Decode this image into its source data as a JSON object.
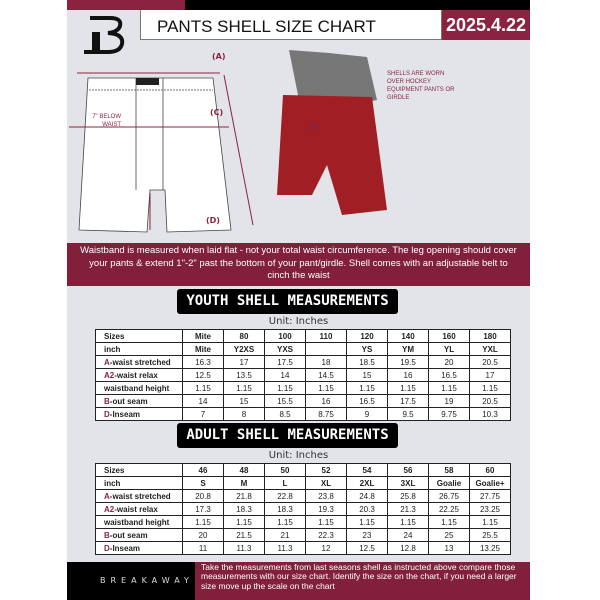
{
  "header": {
    "title": "PANTS SHELL SIZE CHART",
    "date": "2025.4.22"
  },
  "colors": {
    "brand": "#8b2340",
    "dark": "#000000"
  },
  "diagram": {
    "label_a": "(A)",
    "label_b": "(B)",
    "label_c": "(C)",
    "label_d": "(D)",
    "below_waist": "7\" BELOW WAIST",
    "note": "SHELLS ARE WORN OVER HOCKEY EQUIPMENT PANTS OR GIRDLE"
  },
  "info": "Waistband is measured when laid flat - not your total waist circumference. The leg opening should cover your pants & extend 1\"-2\" past the bottom of your pant/girdle. Shell comes with an adjustable belt to cinch the waist",
  "youth": {
    "title": "YOUTH SHELL MEASUREMENTS",
    "unit": "Unit: Inches",
    "rows": [
      {
        "k": "",
        "label": "Sizes",
        "v": [
          "Mite",
          "80",
          "100",
          "110",
          "120",
          "140",
          "160",
          "180"
        ]
      },
      {
        "k": "",
        "label": "inch",
        "v": [
          "Mite",
          "Y2XS",
          "YXS",
          "",
          "YS",
          "YM",
          "YL",
          "YXL"
        ]
      },
      {
        "k": "A",
        "label": "-waist stretched",
        "v": [
          "16.3",
          "17",
          "17.5",
          "18",
          "18.5",
          "19.5",
          "20",
          "20.5"
        ]
      },
      {
        "k": "A2",
        "label": "-waist relax",
        "v": [
          "12.5",
          "13.5",
          "14",
          "14.5",
          "15",
          "16",
          "16.5",
          "17"
        ]
      },
      {
        "k": "",
        "label": "waistband height",
        "v": [
          "1.15",
          "1.15",
          "1.15",
          "1.15",
          "1.15",
          "1.15",
          "1.15",
          "1.15"
        ]
      },
      {
        "k": "B",
        "label": "-out seam",
        "v": [
          "14",
          "15",
          "15.5",
          "16",
          "16.5",
          "17.5",
          "19",
          "20.5"
        ]
      },
      {
        "k": "D",
        "label": "-Inseam",
        "v": [
          "7",
          "8",
          "8.5",
          "8.75",
          "9",
          "9.5",
          "9.75",
          "10.3"
        ]
      }
    ]
  },
  "adult": {
    "title": "ADULT SHELL MEASUREMENTS",
    "unit": "Unit: Inches",
    "rows": [
      {
        "k": "",
        "label": "Sizes",
        "v": [
          "46",
          "48",
          "50",
          "52",
          "54",
          "56",
          "58",
          "60"
        ]
      },
      {
        "k": "",
        "label": "inch",
        "v": [
          "S",
          "M",
          "L",
          "XL",
          "2XL",
          "3XL",
          "Goalie",
          "Goalie+"
        ]
      },
      {
        "k": "A",
        "label": "-waist stretched",
        "v": [
          "20.8",
          "21.8",
          "22.8",
          "23.8",
          "24.8",
          "25.8",
          "26.75",
          "27.75"
        ]
      },
      {
        "k": "A2",
        "label": "-waist relax",
        "v": [
          "17.3",
          "18.3",
          "18.3",
          "19.3",
          "20.3",
          "21.3",
          "22.25",
          "23.25"
        ]
      },
      {
        "k": "",
        "label": "waistband height",
        "v": [
          "1.15",
          "1.15",
          "1.15",
          "1.15",
          "1.15",
          "1.15",
          "1.15",
          "1.15"
        ]
      },
      {
        "k": "B",
        "label": "-out seam",
        "v": [
          "20",
          "21.5",
          "21",
          "22.3",
          "23",
          "24",
          "25",
          "25.5"
        ]
      },
      {
        "k": "D",
        "label": "-Inseam",
        "v": [
          "11",
          "11.3",
          "11.3",
          "12",
          "12.5",
          "12.8",
          "13",
          "13.25"
        ]
      }
    ]
  },
  "footer": {
    "brand": "BREAKAWAY",
    "text": "Take the measurements from last seasons shell as instructed above compare those measurements  with our size chart. Identify the size on the chart, if you need a larger size move up the scale on the chart"
  }
}
